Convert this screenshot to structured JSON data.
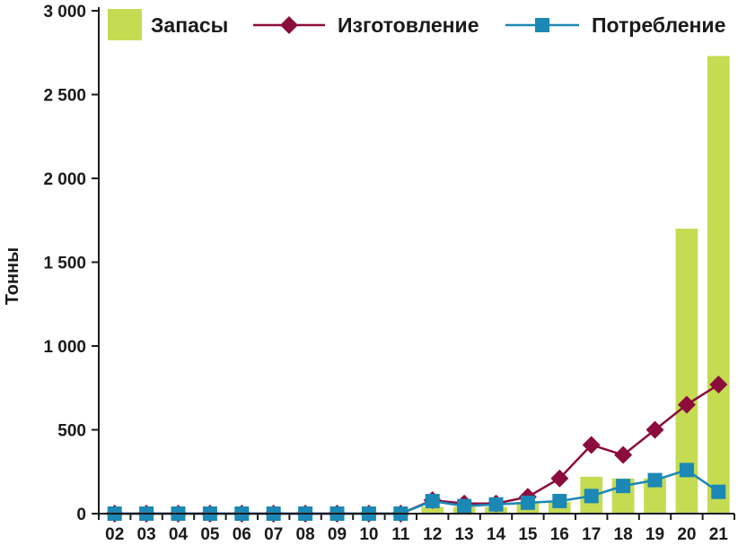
{
  "chart_data": {
    "type": "bar",
    "title": "",
    "xlabel": "",
    "ylabel": "Тонны",
    "ylim": [
      0,
      3000
    ],
    "yticks": [
      0,
      500,
      1000,
      1500,
      2000,
      2500,
      3000
    ],
    "ytick_labels": [
      "0",
      "500",
      "1 000",
      "1 500",
      "2 000",
      "2 500",
      "3 000"
    ],
    "categories": [
      "02",
      "03",
      "04",
      "05",
      "06",
      "07",
      "08",
      "09",
      "10",
      "11",
      "12",
      "13",
      "14",
      "15",
      "16",
      "17",
      "18",
      "19",
      "20",
      "21"
    ],
    "legend_position": "top",
    "grid": false,
    "series": [
      {
        "name": "Запасы",
        "kind": "bar",
        "color": "#c5db52",
        "values": [
          0,
          0,
          0,
          0,
          0,
          0,
          0,
          0,
          0,
          0,
          40,
          40,
          40,
          70,
          70,
          220,
          210,
          210,
          1700,
          2730
        ]
      },
      {
        "name": "Изготовление",
        "kind": "line",
        "marker": "diamond",
        "color": "#8b0d3c",
        "values": [
          0,
          0,
          0,
          0,
          0,
          0,
          0,
          0,
          0,
          0,
          80,
          60,
          60,
          100,
          210,
          410,
          350,
          500,
          650,
          770
        ]
      },
      {
        "name": "Потребление",
        "kind": "line",
        "marker": "square",
        "color": "#1b88b5",
        "values": [
          0,
          0,
          0,
          0,
          0,
          0,
          0,
          0,
          0,
          0,
          75,
          45,
          55,
          65,
          75,
          105,
          165,
          200,
          260,
          130
        ]
      }
    ]
  }
}
